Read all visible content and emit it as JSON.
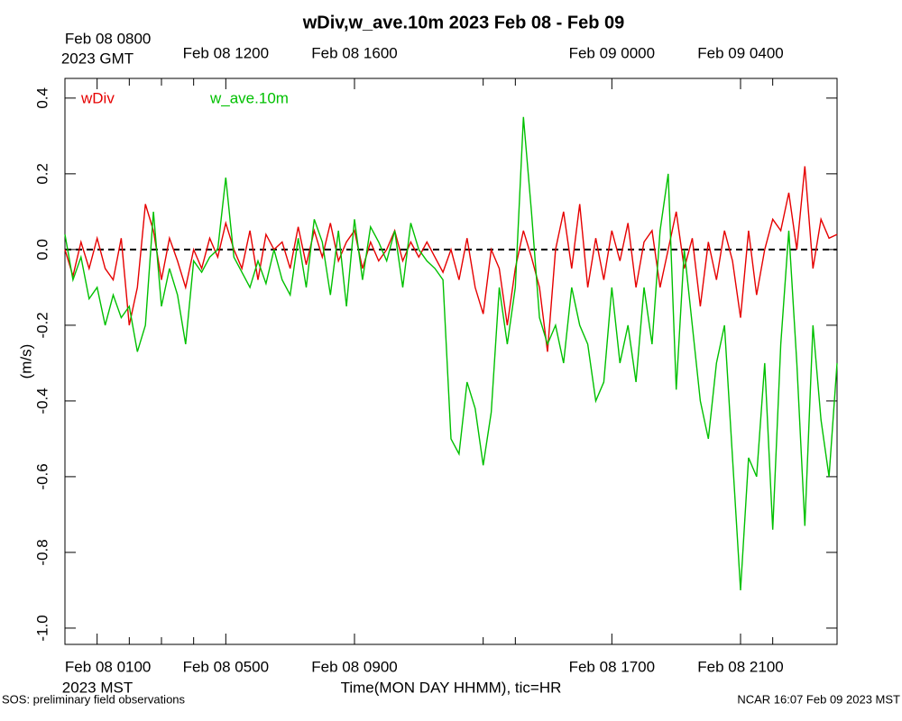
{
  "chart_data": {
    "type": "line",
    "title": "wDiv,w_ave.10m 2023 Feb 08 - Feb 09",
    "ylabel": "(m/s)",
    "xlabel": "Time(MON DAY HHMM), tic=HR",
    "x_timezone_bottom": "2023 MST",
    "x_timezone_top": "2023 GMT",
    "footer_left": "SOS: preliminary field observations",
    "footer_right": "NCAR 16:07 Feb 09 2023 MST",
    "reference_line": 0,
    "xlim": [
      0,
      24
    ],
    "ylim": [
      -1.043,
      0.452
    ],
    "yticks": [
      0.4,
      0.2,
      {
        "value": 0,
        "label": "0.0"
      },
      -0.2,
      -0.4,
      -0.6,
      -0.8,
      {
        "value": -1,
        "label": "-1.0"
      }
    ],
    "xticks": [
      {
        "value": 1,
        "label": "Feb 08 0100"
      },
      {
        "value": 5,
        "label": "Feb 08 0500"
      },
      {
        "value": 9,
        "label": "Feb 08 0900"
      },
      {
        "value": 17,
        "label": "Feb 08 1700"
      },
      {
        "value": 21,
        "label": "Feb 08 2100"
      }
    ],
    "x2ticks": [
      {
        "value": 1,
        "label": "Feb 08 0800"
      },
      {
        "value": 5,
        "label": "Feb 08 1200"
      },
      {
        "value": 9,
        "label": "Feb 08 1600"
      },
      {
        "value": 17,
        "label": "Feb 09 0000"
      },
      {
        "value": 21,
        "label": "Feb 09 0400"
      }
    ],
    "xminorticks": [
      0,
      2,
      3,
      4,
      13,
      14,
      22,
      24
    ],
    "x": [
      0,
      0.25,
      0.5,
      0.75,
      1,
      1.25,
      1.5,
      1.75,
      2,
      2.25,
      2.5,
      2.75,
      3,
      3.25,
      3.5,
      3.75,
      4,
      4.25,
      4.5,
      4.75,
      5,
      5.25,
      5.5,
      5.75,
      6,
      6.25,
      6.5,
      6.75,
      7,
      7.25,
      7.5,
      7.75,
      8,
      8.25,
      8.5,
      8.75,
      9,
      9.25,
      9.5,
      9.75,
      10,
      10.25,
      10.5,
      10.75,
      11,
      11.25,
      11.5,
      11.75,
      12,
      12.25,
      12.5,
      12.75,
      13,
      13.25,
      13.5,
      13.75,
      14,
      14.25,
      14.5,
      14.75,
      15,
      15.25,
      15.5,
      15.75,
      16,
      16.25,
      16.5,
      16.75,
      17,
      17.25,
      17.5,
      17.75,
      18,
      18.25,
      18.5,
      18.75,
      19,
      19.25,
      19.5,
      19.75,
      20,
      20.25,
      20.5,
      20.75,
      21,
      21.25,
      21.5,
      21.75,
      22,
      22.25,
      22.5,
      22.75,
      23,
      23.25,
      23.5,
      23.75,
      24
    ],
    "series": [
      {
        "name": "wDiv",
        "color": "#e60000",
        "values": [
          0.0,
          -0.07,
          0.02,
          -0.05,
          0.03,
          -0.05,
          -0.08,
          0.03,
          -0.2,
          -0.1,
          0.12,
          0.05,
          -0.08,
          0.03,
          -0.03,
          -0.1,
          0.0,
          -0.05,
          0.03,
          -0.02,
          0.07,
          0.0,
          -0.05,
          0.05,
          -0.08,
          0.04,
          0.0,
          0.02,
          -0.05,
          0.06,
          -0.04,
          0.05,
          -0.02,
          0.07,
          -0.03,
          0.02,
          0.05,
          -0.05,
          0.02,
          -0.03,
          0.0,
          0.05,
          -0.03,
          0.02,
          -0.02,
          0.02,
          -0.02,
          -0.06,
          0.0,
          -0.08,
          0.03,
          -0.1,
          -0.17,
          0.0,
          -0.05,
          -0.2,
          -0.05,
          0.05,
          -0.02,
          -0.1,
          -0.27,
          0.0,
          0.1,
          -0.05,
          0.12,
          -0.1,
          0.03,
          -0.08,
          0.05,
          -0.03,
          0.07,
          -0.1,
          0.02,
          0.05,
          -0.1,
          0.0,
          0.1,
          -0.05,
          0.03,
          -0.15,
          0.02,
          -0.08,
          0.05,
          -0.03,
          -0.18,
          0.05,
          -0.12,
          0.0,
          0.08,
          0.05,
          0.15,
          0.0,
          0.22,
          -0.05,
          0.08,
          0.03,
          0.04
        ]
      },
      {
        "name": "w_ave.10m",
        "color": "#00c000",
        "values": [
          0.04,
          -0.08,
          -0.02,
          -0.13,
          -0.1,
          -0.2,
          -0.12,
          -0.18,
          -0.15,
          -0.27,
          -0.2,
          0.1,
          -0.15,
          -0.05,
          -0.12,
          -0.25,
          -0.03,
          -0.06,
          -0.02,
          0.0,
          0.19,
          -0.02,
          -0.06,
          -0.1,
          -0.03,
          -0.09,
          0.0,
          -0.08,
          -0.12,
          0.03,
          -0.1,
          0.08,
          0.02,
          -0.12,
          0.05,
          -0.15,
          0.08,
          -0.08,
          0.06,
          0.02,
          -0.03,
          0.05,
          -0.1,
          0.07,
          0.0,
          -0.03,
          -0.05,
          -0.08,
          -0.5,
          -0.54,
          -0.35,
          -0.42,
          -0.57,
          -0.43,
          -0.1,
          -0.25,
          -0.1,
          0.35,
          0.1,
          -0.18,
          -0.25,
          -0.2,
          -0.3,
          -0.1,
          -0.2,
          -0.25,
          -0.4,
          -0.35,
          -0.1,
          -0.3,
          -0.2,
          -0.35,
          -0.1,
          -0.25,
          0.05,
          0.2,
          -0.37,
          0.0,
          -0.2,
          -0.4,
          -0.5,
          -0.3,
          -0.2,
          -0.55,
          -0.9,
          -0.55,
          -0.6,
          -0.3,
          -0.74,
          -0.25,
          0.05,
          -0.3,
          -0.73,
          -0.2,
          -0.45,
          -0.6,
          -0.3
        ]
      }
    ]
  }
}
